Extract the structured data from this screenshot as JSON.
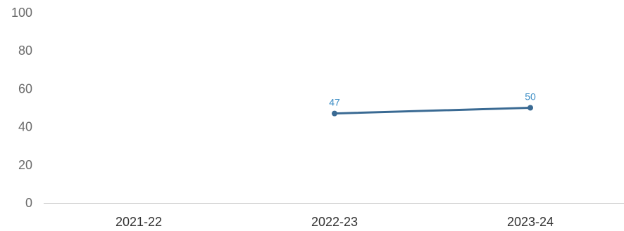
{
  "colors": {
    "series": "#3a6a93",
    "data_label": "#3c8dc5",
    "axis": "#c8c8c8",
    "tick_text": "#6b6b6b",
    "category_text": "#333333"
  },
  "chart_data": {
    "type": "line",
    "title": "",
    "xlabel": "",
    "ylabel": "",
    "categories": [
      "2021-22",
      "2022-23",
      "2023-24"
    ],
    "series": [
      {
        "values": [
          null,
          47,
          50
        ],
        "data_labels": [
          "",
          "47",
          "50"
        ]
      }
    ],
    "yticks": [
      "0",
      "20",
      "40",
      "60",
      "80",
      "100"
    ],
    "ylim": [
      0,
      100
    ],
    "grid": false,
    "legend": "none"
  }
}
